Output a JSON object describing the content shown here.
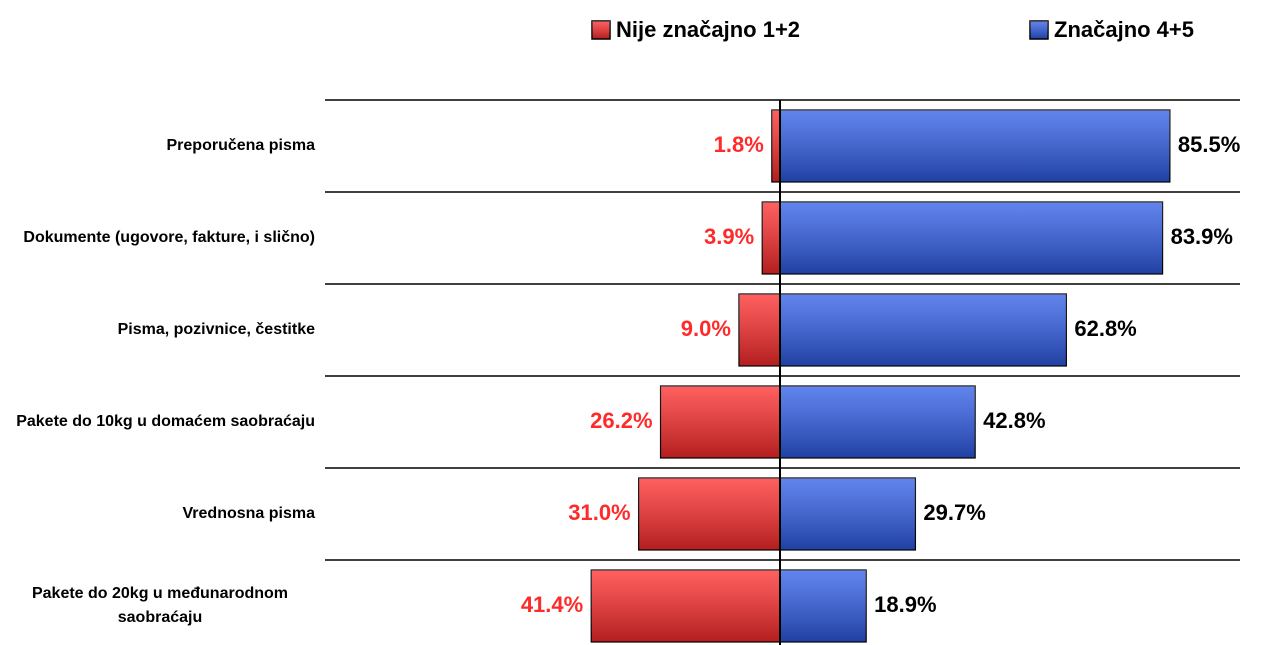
{
  "chart_data": {
    "type": "diverging-bar",
    "categories": [
      "Preporučena pisma",
      "Dokumente (ugovore, fakture, i slično)",
      "Pisma, pozivnice, čestitke",
      "Pakete do 10kg u domaćem saobraćaju",
      "Vrednosna pisma",
      "Pakete do 20kg u međunarodnom saobraćaju"
    ],
    "series": [
      {
        "name": "Nije značajno 1+2",
        "color": "#ff2a2a",
        "values": [
          1.8,
          3.9,
          9.0,
          26.2,
          31.0,
          41.4
        ],
        "value_labels": [
          "1.8%",
          "3.9%",
          "9.0%",
          "26.2%",
          "31.0%",
          "41.4%"
        ]
      },
      {
        "name": "Značajno 4+5",
        "color": "#2d5be8",
        "values": [
          85.5,
          83.9,
          62.8,
          42.8,
          29.7,
          18.9
        ],
        "value_labels": [
          "85.5%",
          "83.9%",
          "62.8%",
          "42.8%",
          "29.7%",
          "18.9%"
        ]
      }
    ]
  }
}
